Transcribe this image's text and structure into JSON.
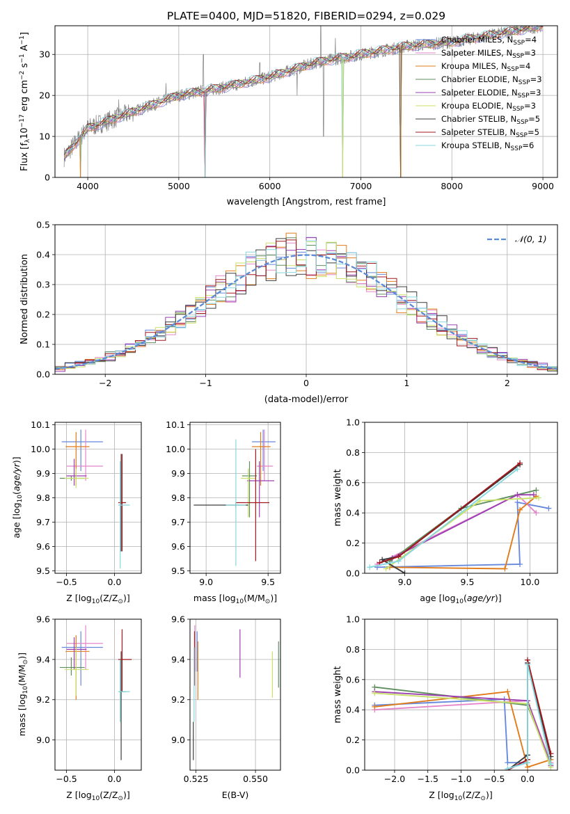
{
  "figure_title": "PLATE=0400, MJD=51820, FIBERID=0294, z=0.029",
  "colors": {
    "Chabrier MILES": "#6688dd",
    "Salpeter MILES": "#e585c9",
    "Kroupa MILES": "#e07b1a",
    "Chabrier ELODIE": "#5e8e5e",
    "Salpeter ELODIE": "#9b3fb0",
    "Kroupa ELODIE": "#c9e06a",
    "Chabrier STELIB": "#3c3c3c",
    "Salpeter STELIB": "#a0171c",
    "Kroupa STELIB": "#86d7df",
    "data": "#808080",
    "normal": "#5b8bd6"
  },
  "chart_data": [
    {
      "id": "spectrum",
      "type": "line",
      "xlabel": "wavelength [Angstrom, rest frame]",
      "ylabel": "Flux [f",
      "ylabel_sub": "λ",
      "ylabel_rest": "10",
      "ylabel_exp": "−17",
      "ylabel_unit": " erg cm",
      "ylabel_unit_exp": "−2",
      "ylabel_unit2": " s",
      "ylabel_unit2_exp": "−1",
      "ylabel_unit3": " A",
      "ylabel_unit3_exp": "−1",
      "ylabel_end": "]",
      "xlim": [
        3640,
        9160
      ],
      "ylim": [
        0,
        37
      ],
      "xticks": [
        4000,
        5000,
        6000,
        7000,
        8000,
        9000
      ],
      "yticks": [
        0,
        10,
        20,
        30
      ],
      "legend_placement": "top-right",
      "legend": [
        {
          "label": "Chabrier MILES, N",
          "sub": "SSP",
          "tail": "=4"
        },
        {
          "label": "Salpeter MILES, N",
          "sub": "SSP",
          "tail": "=3"
        },
        {
          "label": "Kroupa MILES, N",
          "sub": "SSP",
          "tail": "=4"
        },
        {
          "label": "Chabrier ELODIE, N",
          "sub": "SSP",
          "tail": "=3"
        },
        {
          "label": "Salpeter ELODIE, N",
          "sub": "SSP",
          "tail": "=3"
        },
        {
          "label": "Kroupa ELODIE, N",
          "sub": "SSP",
          "tail": "=3"
        },
        {
          "label": "Chabrier STELIB, N",
          "sub": "SSP",
          "tail": "=5"
        },
        {
          "label": "Salpeter STELIB, N",
          "sub": "SSP",
          "tail": "=5"
        },
        {
          "label": "Kroupa STELIB, N",
          "sub": "SSP",
          "tail": "=6"
        }
      ],
      "continuum": [
        [
          3740,
          5
        ],
        [
          4000,
          12
        ],
        [
          4500,
          16
        ],
        [
          5000,
          20
        ],
        [
          5500,
          22
        ],
        [
          6000,
          24.5
        ],
        [
          6500,
          28
        ],
        [
          7000,
          30
        ],
        [
          7500,
          32
        ],
        [
          8000,
          33
        ],
        [
          8500,
          35
        ],
        [
          9000,
          37
        ]
      ],
      "spikes": [
        [
          4340,
          19
        ],
        [
          4860,
          23
        ],
        [
          5270,
          30
        ],
        [
          5890,
          28
        ],
        [
          6300,
          20
        ],
        [
          6560,
          45
        ],
        [
          6590,
          10
        ],
        [
          6720,
          34
        ]
      ],
      "dropouts": [
        [
          3920,
          0
        ],
        [
          5290,
          0
        ],
        [
          6800,
          0
        ],
        [
          7440,
          0
        ]
      ]
    },
    {
      "id": "residuals",
      "type": "histogram",
      "xlabel": "(data-model)/error",
      "ylabel": "Normed distribution",
      "xlim": [
        -2.5,
        2.5
      ],
      "ylim": [
        0,
        0.5
      ],
      "xticks": [
        -2,
        -1,
        0,
        1,
        2
      ],
      "yticks": [
        0,
        0.1,
        0.2,
        0.3,
        0.4,
        0.5
      ],
      "bin_width": 0.1,
      "legend_label": "𝒩(0, 1)",
      "legend_placement": "top-right",
      "normal": {
        "mu": 0,
        "sigma": 1
      }
    },
    {
      "id": "age_vs_Z",
      "type": "errorbar",
      "xlabel": "Z [log",
      "xlabel_sub": "10",
      "xlabel_rest": "(Z/Z",
      "xlabel_sub2": "⊙",
      "xlabel_end": ")]",
      "ylabel": "age  [log",
      "ylabel_sub": "10",
      "ylabel_rest": "(age/yr)]",
      "xlim": [
        -0.62,
        0.28
      ],
      "ylim": [
        9.49,
        10.11
      ],
      "xticks": [
        -0.5,
        0.0
      ],
      "yticks": [
        9.5,
        9.6,
        9.7,
        9.8,
        9.9,
        10.0,
        10.1
      ],
      "points": [
        {
          "model": "Chabrier MILES",
          "x": -0.35,
          "xerr": [
            0.2,
            0.23
          ],
          "y": 10.03,
          "yerr": [
            0.12,
            0.05
          ]
        },
        {
          "model": "Salpeter MILES",
          "x": -0.3,
          "xerr": [
            0.2,
            0.18
          ],
          "y": 9.93,
          "yerr": [
            0.06,
            0.15
          ]
        },
        {
          "model": "Kroupa MILES",
          "x": -0.4,
          "xerr": [
            0.11,
            0.14
          ],
          "y": 10.01,
          "yerr": [
            0.16,
            0.06
          ]
        },
        {
          "model": "Chabrier ELODIE",
          "x": -0.45,
          "xerr": [
            0.12,
            0.14
          ],
          "y": 9.88,
          "yerr": [
            0.01,
            0.01
          ]
        },
        {
          "model": "Salpeter ELODIE",
          "x": -0.42,
          "xerr": [
            0.08,
            0.13
          ],
          "y": 9.89,
          "yerr": [
            0.04,
            0.07
          ]
        },
        {
          "model": "Kroupa ELODIE",
          "x": -0.4,
          "xerr": [
            0.12,
            0.13
          ],
          "y": 9.88,
          "yerr": [
            0.04,
            0.04
          ]
        },
        {
          "model": "Chabrier STELIB",
          "x": 0.07,
          "xerr": [
            0.02,
            0.05
          ],
          "y": 9.78,
          "yerr": [
            0.2,
            0.2
          ]
        },
        {
          "model": "Salpeter STELIB",
          "x": 0.08,
          "xerr": [
            0.04,
            0.04
          ],
          "y": 9.78,
          "yerr": [
            0.2,
            0.2
          ]
        },
        {
          "model": "Kroupa STELIB",
          "x": 0.06,
          "xerr": [
            0.02,
            0.1
          ],
          "y": 9.77,
          "yerr": [
            0.26,
            0.18
          ]
        }
      ]
    },
    {
      "id": "age_vs_mass",
      "type": "errorbar",
      "xlabel": "mass [log",
      "xlabel_sub": "10",
      "xlabel_rest": "(M/M",
      "xlabel_sub2": "⊙",
      "xlabel_end": ")]",
      "xlim": [
        8.87,
        9.6
      ],
      "ylim": [
        9.49,
        10.11
      ],
      "xticks": [
        9.0,
        9.5
      ],
      "yticks": [
        9.5,
        9.6,
        9.7,
        9.8,
        9.9,
        10.0,
        10.1
      ],
      "points": [
        {
          "model": "Chabrier MILES",
          "x": 9.46,
          "xerr": [
            0.09,
            0.1
          ],
          "y": 10.03,
          "yerr": [
            0.12,
            0.05
          ]
        },
        {
          "model": "Salpeter MILES",
          "x": 9.47,
          "xerr": [
            0.06,
            0.07
          ],
          "y": 9.93,
          "yerr": [
            0.06,
            0.15
          ]
        },
        {
          "model": "Kroupa MILES",
          "x": 9.44,
          "xerr": [
            0.07,
            0.08
          ],
          "y": 10.01,
          "yerr": [
            0.16,
            0.06
          ]
        },
        {
          "model": "Chabrier ELODIE",
          "x": 9.35,
          "xerr": [
            0.06,
            0.06
          ],
          "y": 9.89,
          "yerr": [
            0.17,
            0.06
          ]
        },
        {
          "model": "Salpeter ELODIE",
          "x": 9.43,
          "xerr": [
            0.1,
            0.12
          ],
          "y": 9.87,
          "yerr": [
            0.15,
            0.08
          ]
        },
        {
          "model": "Kroupa ELODIE",
          "x": 9.34,
          "xerr": [
            0.06,
            0.06
          ],
          "y": 9.88,
          "yerr": [
            0.16,
            0.04
          ]
        },
        {
          "model": "Chabrier STELIB",
          "x": 9.24,
          "xerr": [
            0.34,
            0.1
          ],
          "y": 9.77,
          "yerr": [
            0.01,
            0.01
          ]
        },
        {
          "model": "Salpeter STELIB",
          "x": 9.4,
          "xerr": [
            0.16,
            0.11
          ],
          "y": 9.78,
          "yerr": [
            0.24,
            0.22
          ]
        },
        {
          "model": "Kroupa STELIB",
          "x": 9.24,
          "xerr": [
            0.08,
            0.08
          ],
          "y": 9.77,
          "yerr": [
            0.25,
            0.27
          ]
        }
      ]
    },
    {
      "id": "weight_vs_age",
      "type": "line",
      "xlabel": "age  [log",
      "xlabel_sub": "10",
      "xlabel_rest": "(age/yr)]",
      "ylabel": "mass weight",
      "xlim": [
        8.68,
        10.22
      ],
      "ylim": [
        0,
        1
      ],
      "xticks": [
        9.0,
        9.5,
        10.0
      ],
      "yticks": [
        0,
        0.2,
        0.4,
        0.6,
        0.8,
        1.0
      ],
      "series": [
        {
          "model": "Chabrier MILES",
          "x": [
            8.78,
            9.92,
            9.9,
            10.15
          ],
          "y": [
            0.04,
            0.06,
            0.47,
            0.43
          ]
        },
        {
          "model": "Salpeter MILES",
          "x": [
            8.78,
            9.9,
            10.05
          ],
          "y": [
            0.06,
            0.52,
            0.4
          ]
        },
        {
          "model": "Kroupa MILES",
          "x": [
            8.88,
            9.8,
            9.92,
            10.05
          ],
          "y": [
            0.04,
            0.03,
            0.42,
            0.51
          ]
        },
        {
          "model": "Chabrier ELODIE",
          "x": [
            8.88,
            9.45,
            10.05
          ],
          "y": [
            0.08,
            0.43,
            0.55
          ]
        },
        {
          "model": "Salpeter ELODIE",
          "x": [
            8.9,
            9.9,
            10.03
          ],
          "y": [
            0.1,
            0.52,
            0.52
          ]
        },
        {
          "model": "Kroupa ELODIE",
          "x": [
            8.85,
            9.6,
            10.07
          ],
          "y": [
            0.03,
            0.48,
            0.5
          ]
        },
        {
          "model": "Chabrier STELIB",
          "x": [
            9.0,
            8.82,
            8.95,
            9.92
          ],
          "y": [
            0.0,
            0.09,
            0.11,
            0.72
          ]
        },
        {
          "model": "Salpeter STELIB",
          "x": [
            8.8,
            8.95,
            9.92
          ],
          "y": [
            0.07,
            0.11,
            0.73
          ]
        },
        {
          "model": "Kroupa STELIB",
          "x": [
            8.72,
            8.95,
            9.9
          ],
          "y": [
            0.04,
            0.08,
            0.69
          ]
        }
      ]
    },
    {
      "id": "mass_vs_Z",
      "type": "errorbar",
      "xlabel": "Z [log",
      "xlabel_sub": "10",
      "xlabel_rest": "(Z/Z",
      "xlabel_sub2": "⊙",
      "xlabel_end": ")]",
      "ylabel": "mass [log",
      "ylabel_sub": "10",
      "ylabel_rest": "(M/M",
      "ylabel_sub2": "⊙",
      "ylabel_end": ")]",
      "xlim": [
        -0.62,
        0.28
      ],
      "ylim": [
        8.85,
        9.6
      ],
      "xticks": [
        -0.5,
        0.0
      ],
      "yticks": [
        9.0,
        9.2,
        9.4,
        9.6
      ],
      "points": [
        {
          "model": "Chabrier MILES",
          "x": -0.35,
          "xerr": [
            0.2,
            0.23
          ],
          "y": 9.46,
          "yerr": [
            0.19,
            0.08
          ]
        },
        {
          "model": "Salpeter MILES",
          "x": -0.3,
          "xerr": [
            0.2,
            0.18
          ],
          "y": 9.48,
          "yerr": [
            0.13,
            0.09
          ]
        },
        {
          "model": "Kroupa MILES",
          "x": -0.4,
          "xerr": [
            0.11,
            0.14
          ],
          "y": 9.44,
          "yerr": [
            0.24,
            0.08
          ]
        },
        {
          "model": "Chabrier ELODIE",
          "x": -0.45,
          "xerr": [
            0.12,
            0.14
          ],
          "y": 9.36,
          "yerr": [
            0.04,
            0.05
          ]
        },
        {
          "model": "Salpeter ELODIE",
          "x": -0.42,
          "xerr": [
            0.08,
            0.13
          ],
          "y": 9.45,
          "yerr": [
            0.1,
            0.06
          ]
        },
        {
          "model": "Kroupa ELODIE",
          "x": -0.4,
          "xerr": [
            0.12,
            0.13
          ],
          "y": 9.35,
          "yerr": [
            0.13,
            0.11
          ]
        },
        {
          "model": "Chabrier STELIB",
          "x": 0.07,
          "xerr": [
            0.02,
            0.05
          ],
          "y": 9.24,
          "yerr": [
            0.34,
            0.2
          ]
        },
        {
          "model": "Salpeter STELIB",
          "x": 0.08,
          "xerr": [
            0.04,
            0.1
          ],
          "y": 9.4,
          "yerr": [
            0.16,
            0.15
          ]
        },
        {
          "model": "Kroupa STELIB",
          "x": 0.06,
          "xerr": [
            0.02,
            0.1
          ],
          "y": 9.24,
          "yerr": [
            0.15,
            0.16
          ]
        }
      ]
    },
    {
      "id": "mass_vs_ebv",
      "type": "errorbar",
      "xlabel": "E(B-V)",
      "xlim": [
        0.5225,
        0.5605
      ],
      "ylim": [
        8.85,
        9.6
      ],
      "xticks": [
        0.525,
        0.55
      ],
      "xticklabels": [
        "0.525",
        "0.550"
      ],
      "yticks": [
        9.0,
        9.2,
        9.4,
        9.6
      ],
      "points": [
        {
          "model": "Chabrier MILES",
          "x": 0.5255,
          "y": 9.4,
          "yerr": [
            0.06,
            0.14
          ]
        },
        {
          "model": "Salpeter MILES",
          "x": 0.5245,
          "y": 9.4,
          "yerr": [
            0.06,
            0.17
          ]
        },
        {
          "model": "Kroupa MILES",
          "x": 0.5258,
          "y": 9.38,
          "yerr": [
            0.18,
            0.11
          ]
        },
        {
          "model": "Chabrier ELODIE",
          "x": 0.5597,
          "y": 9.37,
          "yerr": [
            0.11,
            0.12
          ]
        },
        {
          "model": "Salpeter ELODIE",
          "x": 0.5435,
          "y": 9.42,
          "yerr": [
            0.11,
            0.13
          ]
        },
        {
          "model": "Kroupa ELODIE",
          "x": 0.5571,
          "y": 9.33,
          "yerr": [
            0.12,
            0.11
          ]
        },
        {
          "model": "Chabrier STELIB",
          "x": 0.5239,
          "y": 9.0,
          "yerr": [
            0.1,
            0.09
          ]
        },
        {
          "model": "Salpeter STELIB",
          "x": 0.5244,
          "y": 9.4,
          "yerr": [
            0.13,
            0.14
          ]
        },
        {
          "model": "Kroupa STELIB",
          "x": 0.5242,
          "y": 9.25,
          "yerr": [
            0.16,
            0.21
          ]
        }
      ]
    },
    {
      "id": "weight_vs_Z",
      "type": "line",
      "xlabel": "Z [log",
      "xlabel_sub": "10",
      "xlabel_rest": "(Z/Z",
      "xlabel_sub2": "⊙",
      "xlabel_end": ")]",
      "ylabel": "mass weight",
      "xlim": [
        -2.45,
        0.45
      ],
      "ylim": [
        0,
        1
      ],
      "xticks": [
        -2.0,
        -1.5,
        -1.0,
        -0.5,
        0.0
      ],
      "xticklabels": [
        "−2.0",
        "−1.5",
        "−1.0",
        "−0.5",
        "0.0"
      ],
      "yticks": [
        0,
        0.2,
        0.4,
        0.6,
        0.8,
        1.0
      ],
      "series": [
        {
          "model": "Chabrier MILES",
          "x": [
            -2.3,
            -0.35,
            -0.3,
            0.0
          ],
          "y": [
            0.43,
            0.47,
            0.05,
            0.05
          ]
        },
        {
          "model": "Salpeter MILES",
          "x": [
            -2.3,
            0.0,
            0.35
          ],
          "y": [
            0.4,
            0.46,
            0.05
          ]
        },
        {
          "model": "Kroupa MILES",
          "x": [
            -2.3,
            -0.3,
            0.0,
            0.35
          ],
          "y": [
            0.42,
            0.52,
            0.02,
            0.07
          ]
        },
        {
          "model": "Chabrier ELODIE",
          "x": [
            -2.3,
            0.0,
            0.35
          ],
          "y": [
            0.55,
            0.43,
            0.04
          ]
        },
        {
          "model": "Salpeter ELODIE",
          "x": [
            -2.3,
            0.0,
            0.35
          ],
          "y": [
            0.52,
            0.46,
            0.03
          ]
        },
        {
          "model": "Kroupa ELODIE",
          "x": [
            -2.3,
            0.0,
            0.35
          ],
          "y": [
            0.51,
            0.44,
            0.02
          ]
        },
        {
          "model": "Chabrier STELIB",
          "x": [
            -0.3,
            0.0,
            0.0,
            0.35
          ],
          "y": [
            0.0,
            0.1,
            0.71,
            0.09
          ]
        },
        {
          "model": "Salpeter STELIB",
          "x": [
            -0.3,
            0.0,
            0.0,
            0.35
          ],
          "y": [
            0.0,
            0.07,
            0.73,
            0.11
          ]
        },
        {
          "model": "Kroupa STELIB",
          "x": [
            -0.3,
            0.0,
            0.0,
            0.35
          ],
          "y": [
            0.01,
            0.05,
            0.7,
            0.04
          ]
        }
      ]
    }
  ]
}
